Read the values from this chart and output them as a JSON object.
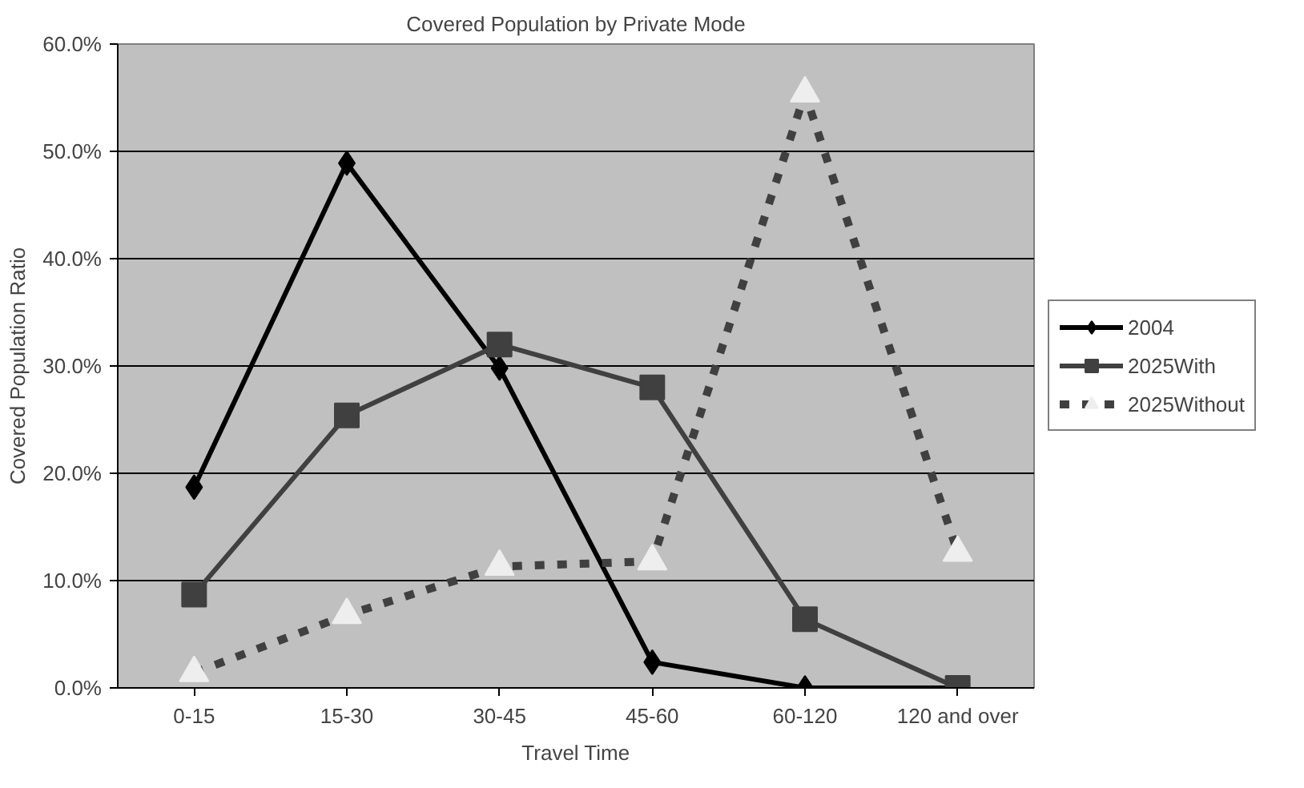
{
  "chart_data": {
    "type": "line",
    "title": "Covered Population by Private Mode",
    "xlabel": "Travel Time",
    "ylabel": "Covered Population Ratio",
    "categories": [
      "0-15",
      "15-30",
      "30-45",
      "45-60",
      "60-120",
      "120 and over"
    ],
    "series": [
      {
        "name": "2004",
        "color": "#000000",
        "marker": "diamond",
        "line_style": "solid",
        "values": [
          18.7,
          48.9,
          29.8,
          2.4,
          0,
          0
        ]
      },
      {
        "name": "2025With",
        "color": "#404040",
        "marker": "square",
        "line_style": "solid",
        "values": [
          8.7,
          25.4,
          32.0,
          28.0,
          6.4,
          0
        ]
      },
      {
        "name": "2025Without",
        "color": "#404040",
        "marker": "triangle",
        "line_style": "dashed",
        "values": [
          1.4,
          6.8,
          11.3,
          11.8,
          55.4,
          12.6
        ]
      }
    ],
    "ylim": [
      0,
      60
    ],
    "yticks": [
      {
        "value": 0,
        "label": "0.0%"
      },
      {
        "value": 10,
        "label": "10.0%"
      },
      {
        "value": 20,
        "label": "20.0%"
      },
      {
        "value": 30,
        "label": "30.0%"
      },
      {
        "value": 40,
        "label": "40.0%"
      },
      {
        "value": 50,
        "label": "50.0%"
      },
      {
        "value": 60,
        "label": "60.0%"
      }
    ],
    "grid": "y",
    "legend": "right"
  }
}
